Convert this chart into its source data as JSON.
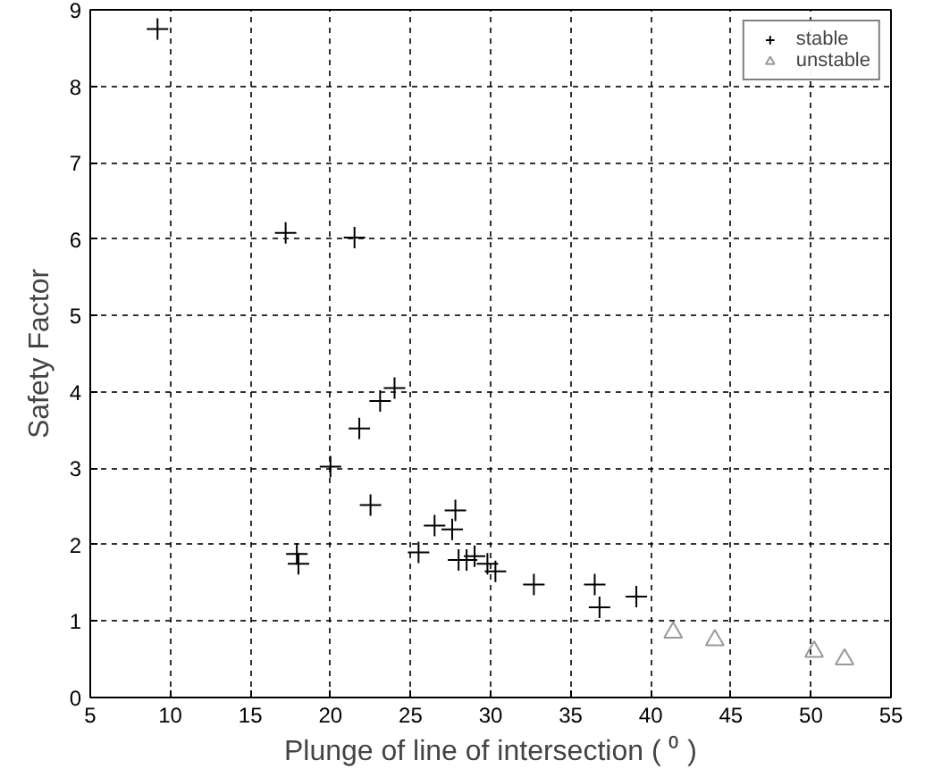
{
  "chart_data": {
    "type": "scatter",
    "xlabel": "Plunge of line of intersection ( ⁰ )",
    "ylabel": "Safety Factor",
    "xlim": [
      5,
      55
    ],
    "xticks": [
      5,
      10,
      15,
      20,
      25,
      30,
      35,
      40,
      45,
      50,
      55
    ],
    "ylim": [
      0,
      9
    ],
    "yticks": [
      0,
      1,
      2,
      3,
      4,
      5,
      6,
      7,
      8,
      9
    ],
    "grid": true,
    "legend": "top right",
    "series": [
      {
        "name": "stable",
        "color": "#000000",
        "marker": "cross",
        "x": [
          9.2,
          17.2,
          21.5,
          24.0,
          23.1,
          21.8,
          20.0,
          22.5,
          17.9,
          18.0,
          25.5,
          26.5,
          27.8,
          27.6,
          28.0,
          28.5,
          29.0,
          29.8,
          30.3,
          32.7,
          36.5,
          36.8,
          39.1
        ],
        "values": [
          8.75,
          6.08,
          6.02,
          4.05,
          3.88,
          3.52,
          3.02,
          2.52,
          1.88,
          1.75,
          1.9,
          2.25,
          2.45,
          2.2,
          1.8,
          1.8,
          1.85,
          1.75,
          1.65,
          1.48,
          1.48,
          1.18,
          1.32
        ]
      },
      {
        "name": "unstable",
        "color": "#999999",
        "marker": "triangle",
        "x": [
          41.4,
          44.0,
          50.2,
          52.1
        ],
        "values": [
          0.85,
          0.75,
          0.6,
          0.5
        ]
      }
    ]
  }
}
